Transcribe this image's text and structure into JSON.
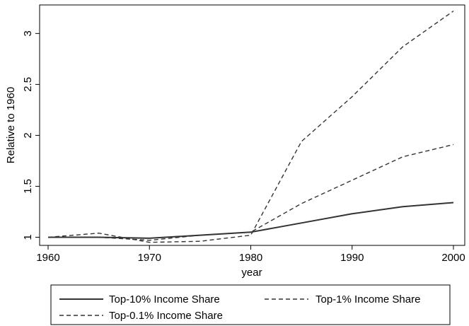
{
  "chart_data": {
    "type": "line",
    "xlabel": "year",
    "ylabel": "Relative to 1960",
    "xlim": [
      1960,
      2000
    ],
    "ylim": [
      0.92,
      3.28
    ],
    "x_ticks": [
      1960,
      1970,
      1980,
      1990,
      2000
    ],
    "y_ticks": [
      1,
      1.5,
      2,
      2.5,
      3
    ],
    "x_tick_labels": [
      "1960",
      "1970",
      "1980",
      "1990",
      "2000"
    ],
    "y_tick_labels": [
      "1",
      "1.5",
      "2",
      "2.5",
      "3"
    ],
    "grid": false,
    "legend_position": "bottom",
    "x": [
      1960,
      1965,
      1970,
      1975,
      1980,
      1985,
      1990,
      1995,
      2000
    ],
    "series": [
      {
        "name": "Top-10% Income Share",
        "style": "solid",
        "color": "#333333",
        "values": [
          1.0,
          1.0,
          0.99,
          1.02,
          1.05,
          1.14,
          1.23,
          1.3,
          1.34
        ]
      },
      {
        "name": "Top-1% Income Share",
        "style": "dashed",
        "color": "#333333",
        "values": [
          1.0,
          1.0,
          0.97,
          1.02,
          1.05,
          1.33,
          1.56,
          1.79,
          1.91
        ]
      },
      {
        "name": "Top-0.1% Income Share",
        "style": "dashed",
        "color": "#333333",
        "values": [
          1.0,
          1.04,
          0.95,
          0.96,
          1.02,
          1.94,
          2.38,
          2.87,
          3.22
        ]
      }
    ]
  }
}
